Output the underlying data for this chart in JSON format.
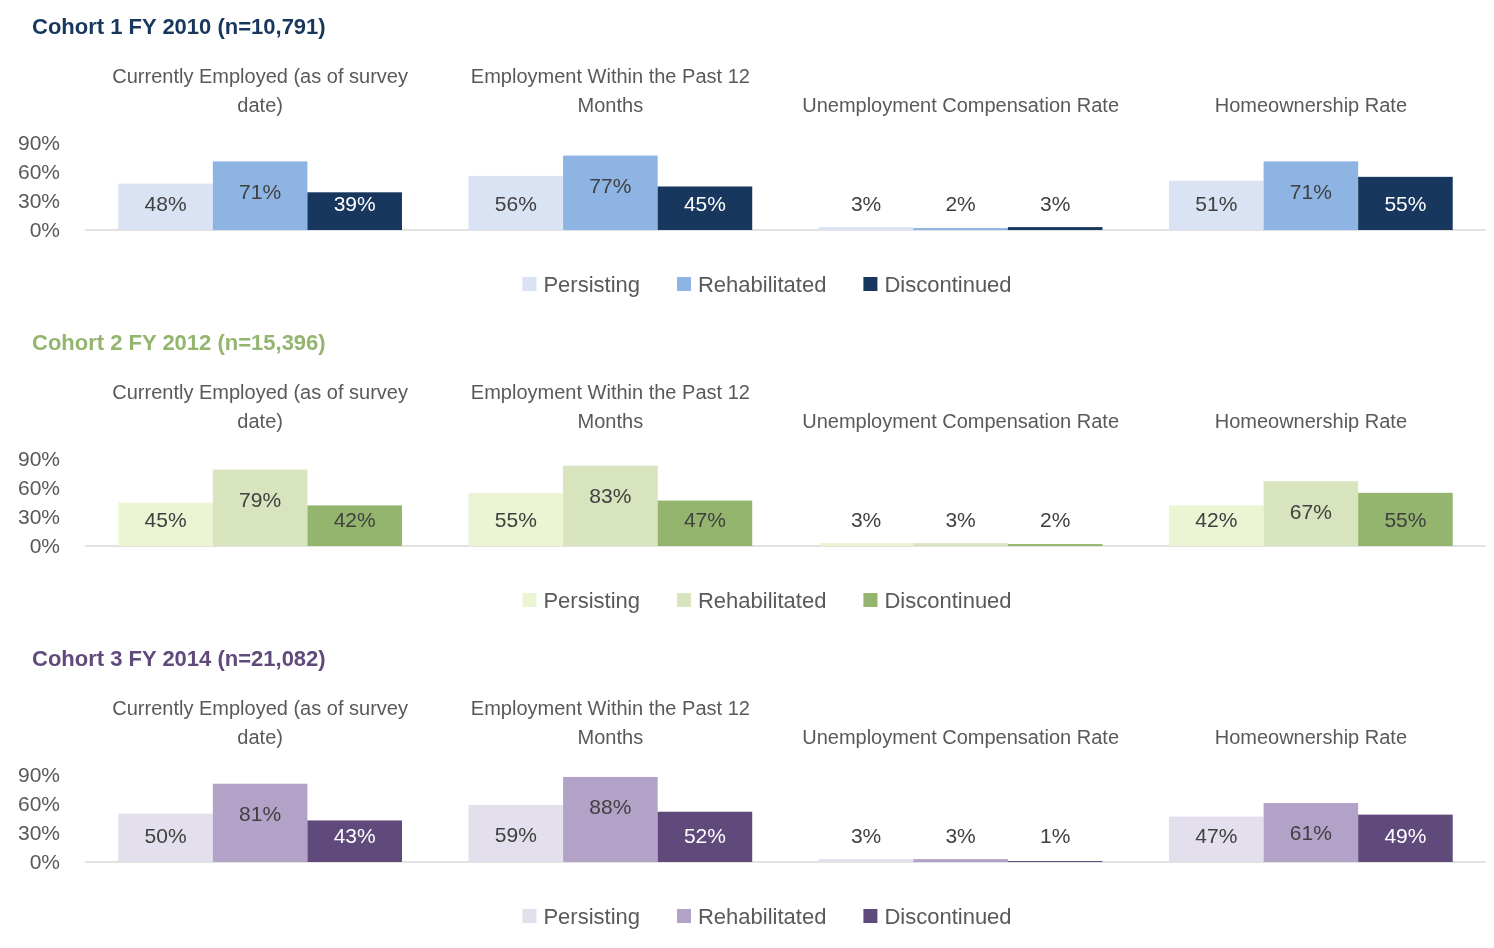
{
  "chart_data": [
    {
      "type": "bar",
      "title": "Cohort 1 FY 2010 (n=10,791)",
      "categories": [
        "Currently Employed (as of survey date)",
        "Employment Within the Past 12 Months",
        "Unemployment Compensation Rate",
        "Homeownership Rate"
      ],
      "ylim": [
        0,
        90
      ],
      "yticks": [
        {
          "value": 0,
          "label": "0%"
        },
        {
          "value": 30,
          "label": "30%"
        },
        {
          "value": 60,
          "label": "60%"
        },
        {
          "value": 90,
          "label": "90%"
        }
      ],
      "legend": "bottom",
      "series": [
        {
          "name": "Persisting",
          "color": "#dae3f3",
          "values": [
            48,
            56,
            3,
            51
          ],
          "value_labels": [
            "48%",
            "56%",
            "3%",
            "51%"
          ]
        },
        {
          "name": "Rehabilitated",
          "color": "#8eb4e3",
          "values": [
            71,
            77,
            2,
            71
          ],
          "value_labels": [
            "71%",
            "77%",
            "2%",
            "71%"
          ]
        },
        {
          "name": "Discontinued",
          "color": "#17375e",
          "values": [
            39,
            45,
            3,
            55
          ],
          "value_labels": [
            "39%",
            "45%",
            "3%",
            "55%"
          ]
        }
      ]
    },
    {
      "type": "bar",
      "title": "Cohort 2 FY 2012 (n=15,396)",
      "categories": [
        "Currently Employed (as of survey date)",
        "Employment Within the Past 12 Months",
        "Unemployment Compensation Rate",
        "Homeownership Rate"
      ],
      "ylim": [
        0,
        90
      ],
      "yticks": [
        {
          "value": 0,
          "label": "0%"
        },
        {
          "value": 30,
          "label": "30%"
        },
        {
          "value": 60,
          "label": "60%"
        },
        {
          "value": 90,
          "label": "90%"
        }
      ],
      "legend": "bottom",
      "series": [
        {
          "name": "Persisting",
          "color": "#ebf4d3",
          "values": [
            45,
            55,
            3,
            42
          ],
          "value_labels": [
            "45%",
            "55%",
            "3%",
            "42%"
          ]
        },
        {
          "name": "Rehabilitated",
          "color": "#d7e4bd",
          "values": [
            79,
            83,
            3,
            67
          ],
          "value_labels": [
            "79%",
            "83%",
            "3%",
            "67%"
          ]
        },
        {
          "name": "Discontinued",
          "color": "#93b56e",
          "values": [
            42,
            47,
            2,
            55
          ],
          "value_labels": [
            "42%",
            "47%",
            "2%",
            "55%"
          ]
        }
      ]
    },
    {
      "type": "bar",
      "title": "Cohort 3 FY 2014 (n=21,082)",
      "categories": [
        "Currently Employed (as of survey date)",
        "Employment Within the Past 12 Months",
        "Unemployment Compensation Rate",
        "Homeownership Rate"
      ],
      "ylim": [
        0,
        90
      ],
      "yticks": [
        {
          "value": 0,
          "label": "0%"
        },
        {
          "value": 30,
          "label": "30%"
        },
        {
          "value": 60,
          "label": "60%"
        },
        {
          "value": 90,
          "label": "90%"
        }
      ],
      "legend": "bottom",
      "series": [
        {
          "name": "Persisting",
          "color": "#e4dfec",
          "values": [
            50,
            59,
            3,
            47
          ],
          "value_labels": [
            "50%",
            "59%",
            "3%",
            "47%"
          ]
        },
        {
          "name": "Rehabilitated",
          "color": "#b3a2c7",
          "values": [
            81,
            88,
            3,
            61
          ],
          "value_labels": [
            "81%",
            "88%",
            "3%",
            "61%"
          ]
        },
        {
          "name": "Discontinued",
          "color": "#604a7b",
          "values": [
            43,
            52,
            1,
            49
          ],
          "value_labels": [
            "43%",
            "52%",
            "1%",
            "49%"
          ]
        }
      ]
    }
  ]
}
